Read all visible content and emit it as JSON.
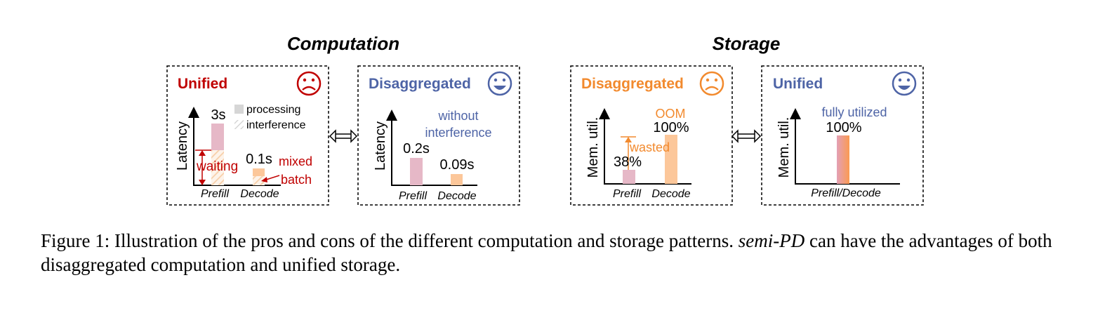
{
  "sections": {
    "computation": "Computation",
    "storage": "Storage"
  },
  "panels": {
    "comp_unified": {
      "title": "Unified",
      "face": "sad-face-icon",
      "ylabel": "Latency",
      "legend_processing": "processing",
      "legend_interference": "interference",
      "prefill_value": "3s",
      "decode_value": "0.1s",
      "waiting_label": "waiting",
      "mixed_label": "mixed",
      "batch_label": "batch",
      "x_prefill": "Prefill",
      "x_decode": "Decode"
    },
    "comp_disagg": {
      "title": "Disaggregated",
      "face": "happy-face-icon",
      "ylabel": "Latency",
      "note_line1": "without",
      "note_line2": "interference",
      "prefill_value": "0.2s",
      "decode_value": "0.09s",
      "x_prefill": "Prefill",
      "x_decode": "Decode"
    },
    "stor_disagg": {
      "title": "Disaggregated",
      "face": "sad-face-icon",
      "ylabel": "Mem. util.",
      "oom_label": "OOM",
      "decode_value": "100%",
      "prefill_value": "38%",
      "wasted_label": "wasted",
      "x_prefill": "Prefill",
      "x_decode": "Decode"
    },
    "stor_unified": {
      "title": "Unified",
      "face": "happy-face-icon",
      "ylabel": "Mem. util.",
      "note": "fully utilized",
      "value": "100%",
      "x_label": "Prefill/Decode"
    }
  },
  "colors": {
    "red": "#c00000",
    "blue": "#4e64a6",
    "orange": "#f28a2e",
    "pink_bar": "#e6b8c7",
    "orange_bar": "#fcc79a",
    "gray_legend": "#d6d6d6"
  },
  "caption": {
    "prefix": "Figure 1: Illustration of the pros and cons of the different computation and storage patterns. ",
    "emph": "semi-PD",
    "suffix": " can have the advantages of both disaggregated computation and unified storage."
  }
}
